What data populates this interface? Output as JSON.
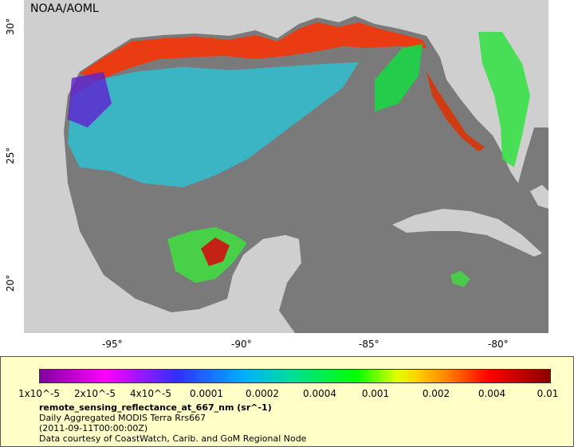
{
  "map": {
    "credit": "NOAA/AOML",
    "lon_ticks": [
      "-95°",
      "-90°",
      "-85°",
      "-80°"
    ],
    "lat_ticks": [
      "30°",
      "25°",
      "20°"
    ]
  },
  "colorbar": {
    "labels": [
      "1x10^-5",
      "2x10^-5",
      "4x10^-5",
      "0.0001",
      "0.0002",
      "0.0004",
      "0.001",
      "0.002",
      "0.004",
      "0.01"
    ]
  },
  "info": {
    "variable": "remote_sensing_reflectance_at_667_nm (sr^-1)",
    "product": "Daily Aggregated MODIS Terra Rrs667",
    "time": "(2011-09-11T00:00:00Z)",
    "credit": "Data courtesy of CoastWatch, Carib. and GoM Regional Node"
  },
  "colors": {
    "ocean_nodata": "#7a7a7a",
    "land": "#cfcfcf",
    "panel": "#ffffc8"
  }
}
